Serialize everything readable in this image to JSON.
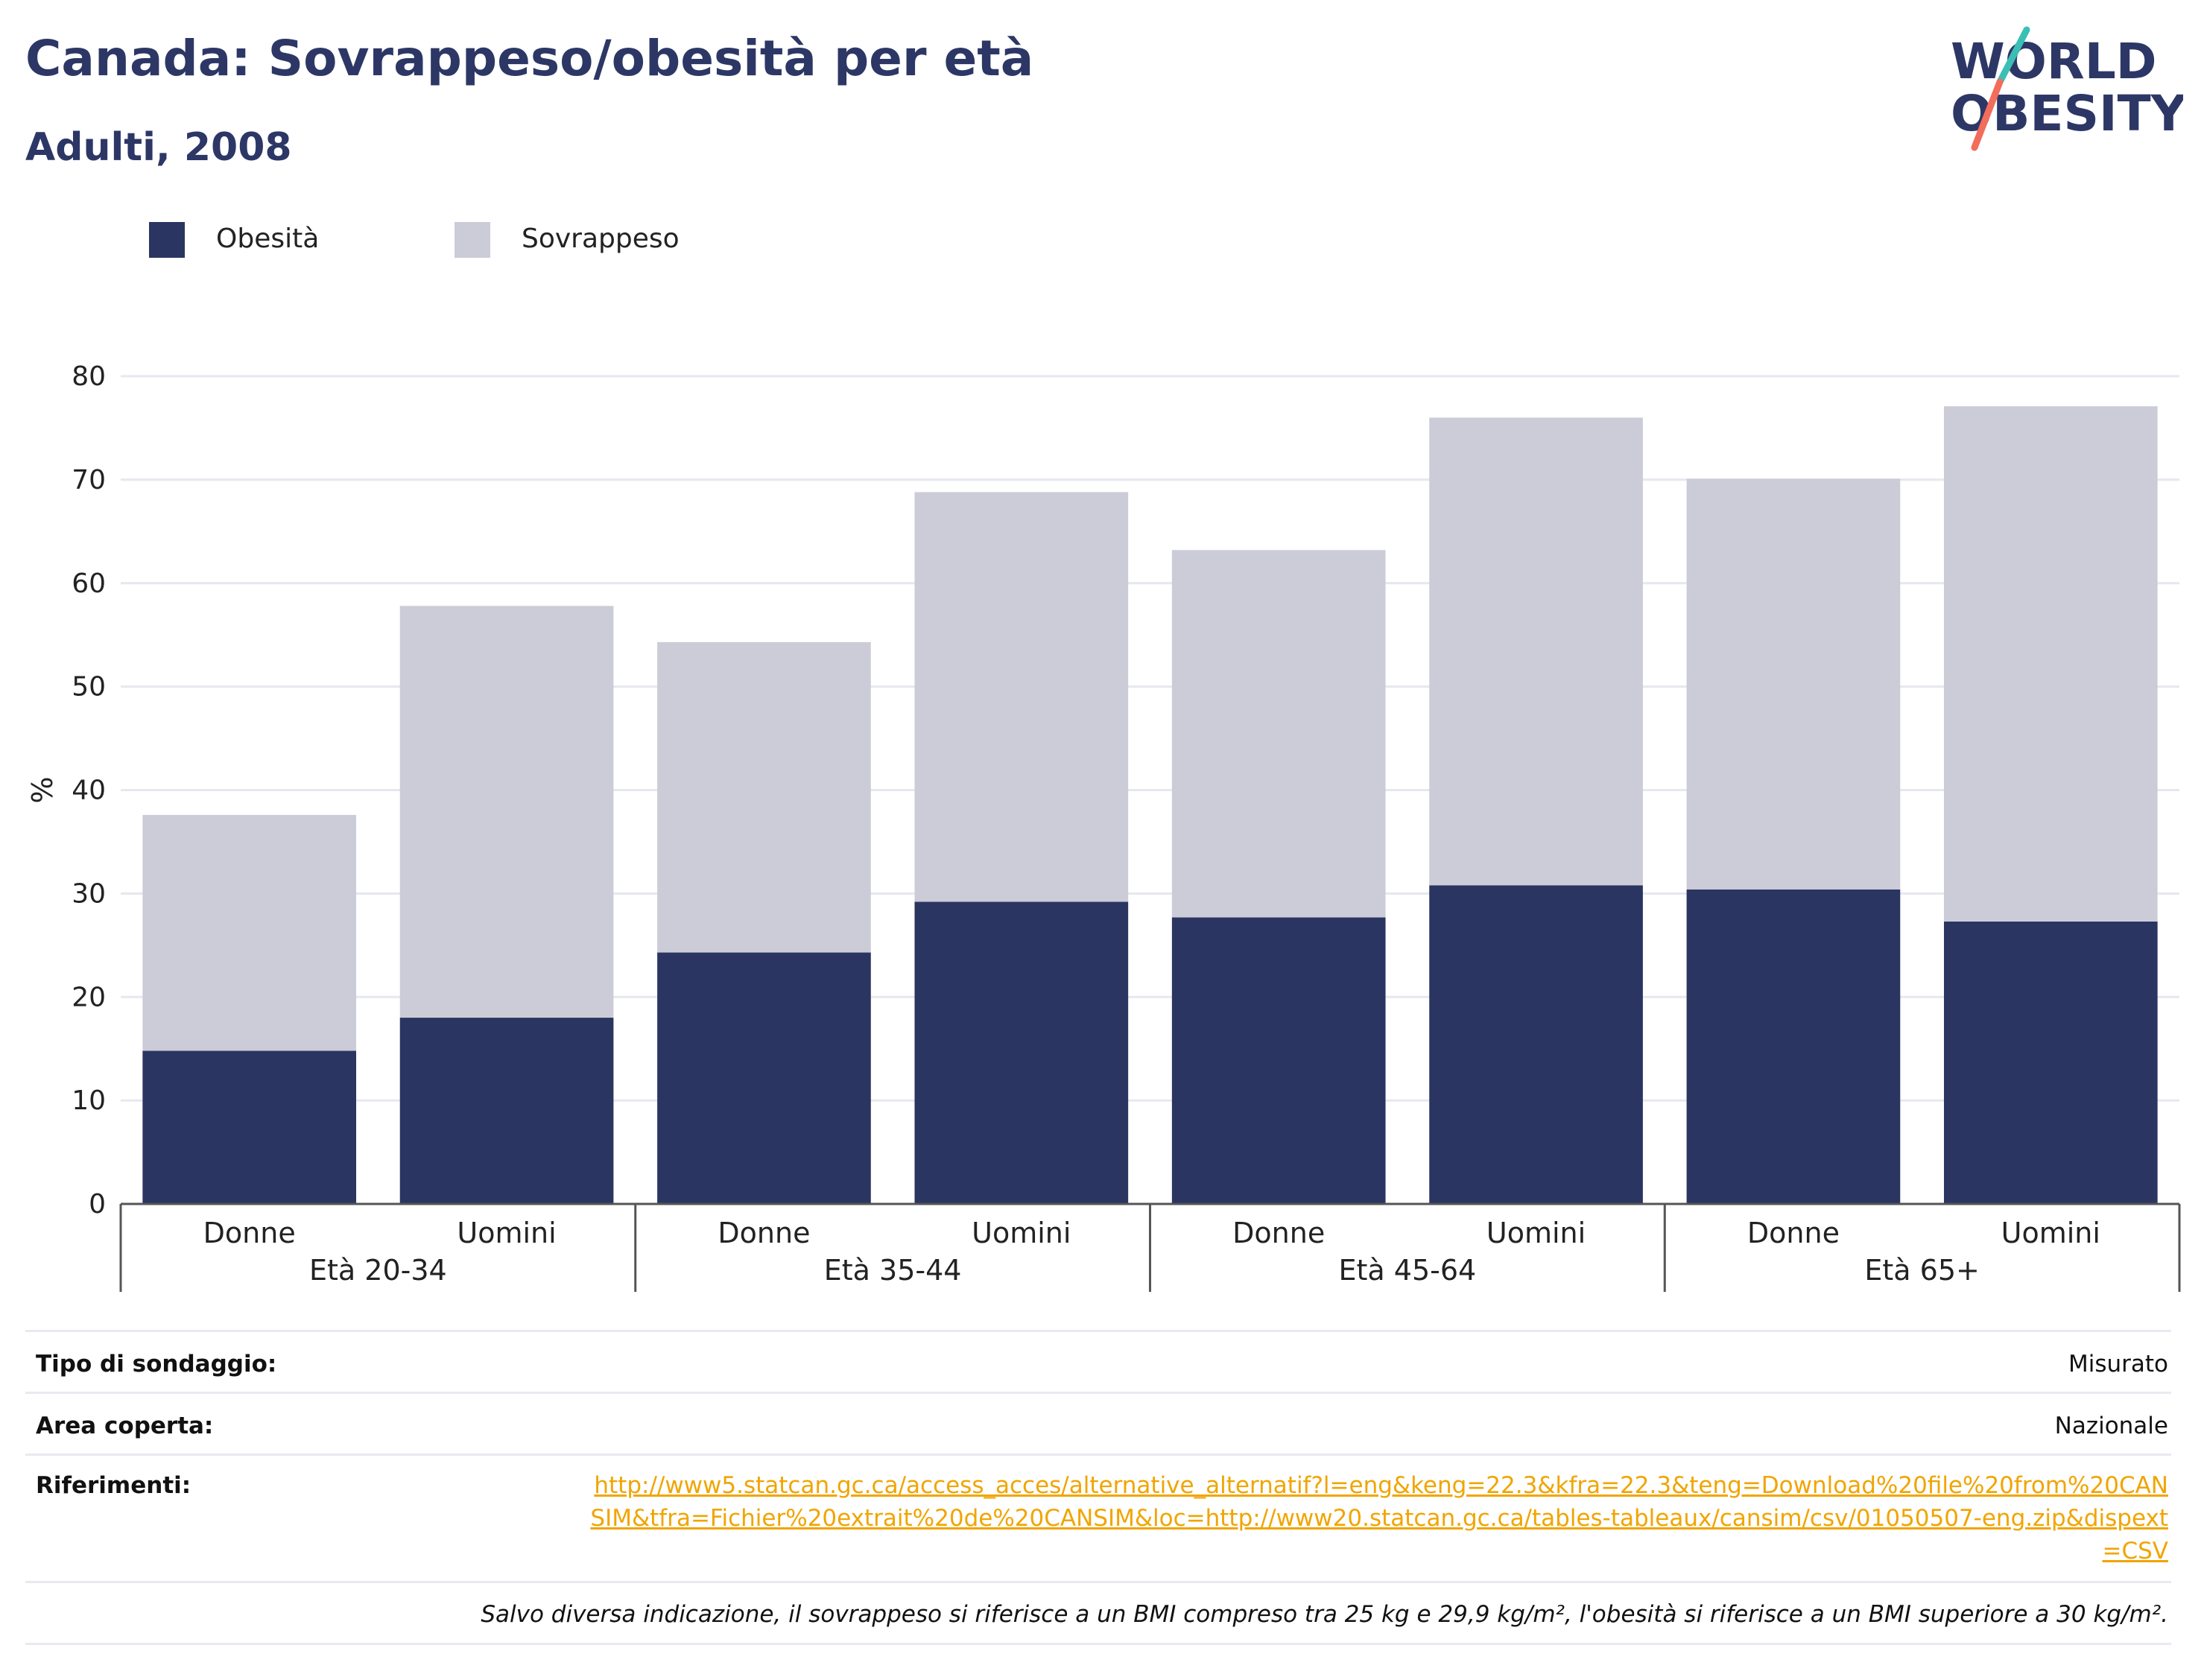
{
  "header": {
    "title": "Canada: Sovrappeso/obesità per età",
    "subtitle": "Adulti, 2008"
  },
  "logo": {
    "line1": "WORLD",
    "line2": "OBESITY",
    "icon": "world-obesity-logo"
  },
  "colors": {
    "obesity": "#2a3561",
    "overweight": "#cbccd7",
    "title": "#2d3766",
    "link": "#f0a500",
    "logo_teal": "#3bbfb5",
    "logo_coral": "#f26d5b"
  },
  "legend": [
    {
      "label": "Obesità",
      "color": "#2a3561"
    },
    {
      "label": "Sovrappeso",
      "color": "#cbccd7"
    }
  ],
  "chart_data": {
    "type": "bar",
    "stacked": true,
    "ylabel": "%",
    "ylim": [
      0,
      80
    ],
    "yticks": [
      0,
      10,
      20,
      30,
      40,
      50,
      60,
      70,
      80
    ],
    "grid": true,
    "legend_position": "top-left",
    "categories": [
      "Donne",
      "Uomini",
      "Donne",
      "Uomini",
      "Donne",
      "Uomini",
      "Donne",
      "Uomini"
    ],
    "groups": [
      {
        "label": "Età 20-34",
        "members": [
          "Donne",
          "Uomini"
        ]
      },
      {
        "label": "Età 35-44",
        "members": [
          "Donne",
          "Uomini"
        ]
      },
      {
        "label": "Età 45-64",
        "members": [
          "Donne",
          "Uomini"
        ]
      },
      {
        "label": "Età 65+",
        "members": [
          "Donne",
          "Uomini"
        ]
      }
    ],
    "series": [
      {
        "name": "Obesità",
        "values": [
          14.8,
          18.0,
          24.3,
          29.2,
          27.7,
          30.8,
          30.4,
          27.3
        ]
      },
      {
        "name": "Sovrappeso",
        "values": [
          22.8,
          39.8,
          30.0,
          39.6,
          35.5,
          45.2,
          39.7,
          49.8
        ]
      }
    ]
  },
  "info": {
    "survey_type_label": "Tipo di sondaggio:",
    "survey_type_value": "Misurato",
    "area_label": "Area coperta:",
    "area_value": "Nazionale",
    "references_label": "Riferimenti:",
    "references_value": "http://www5.statcan.gc.ca/access_acces/alternative_alternatif?l=eng&keng=22.3&kfra=22.3&teng=Download%20file%20from%20CANSIM&tfra=Fichier%20extrait%20de%20CANSIM&loc=http://www20.statcan.gc.ca/tables-tableaux/cansim/csv/01050507-eng.zip&dispext=CSV",
    "note": "Salvo diversa indicazione, il sovrappeso si riferisce a un BMI compreso tra 25 kg e 29,9 kg/m², l'obesità si riferisce a un BMI superiore a 30 kg/m²."
  }
}
